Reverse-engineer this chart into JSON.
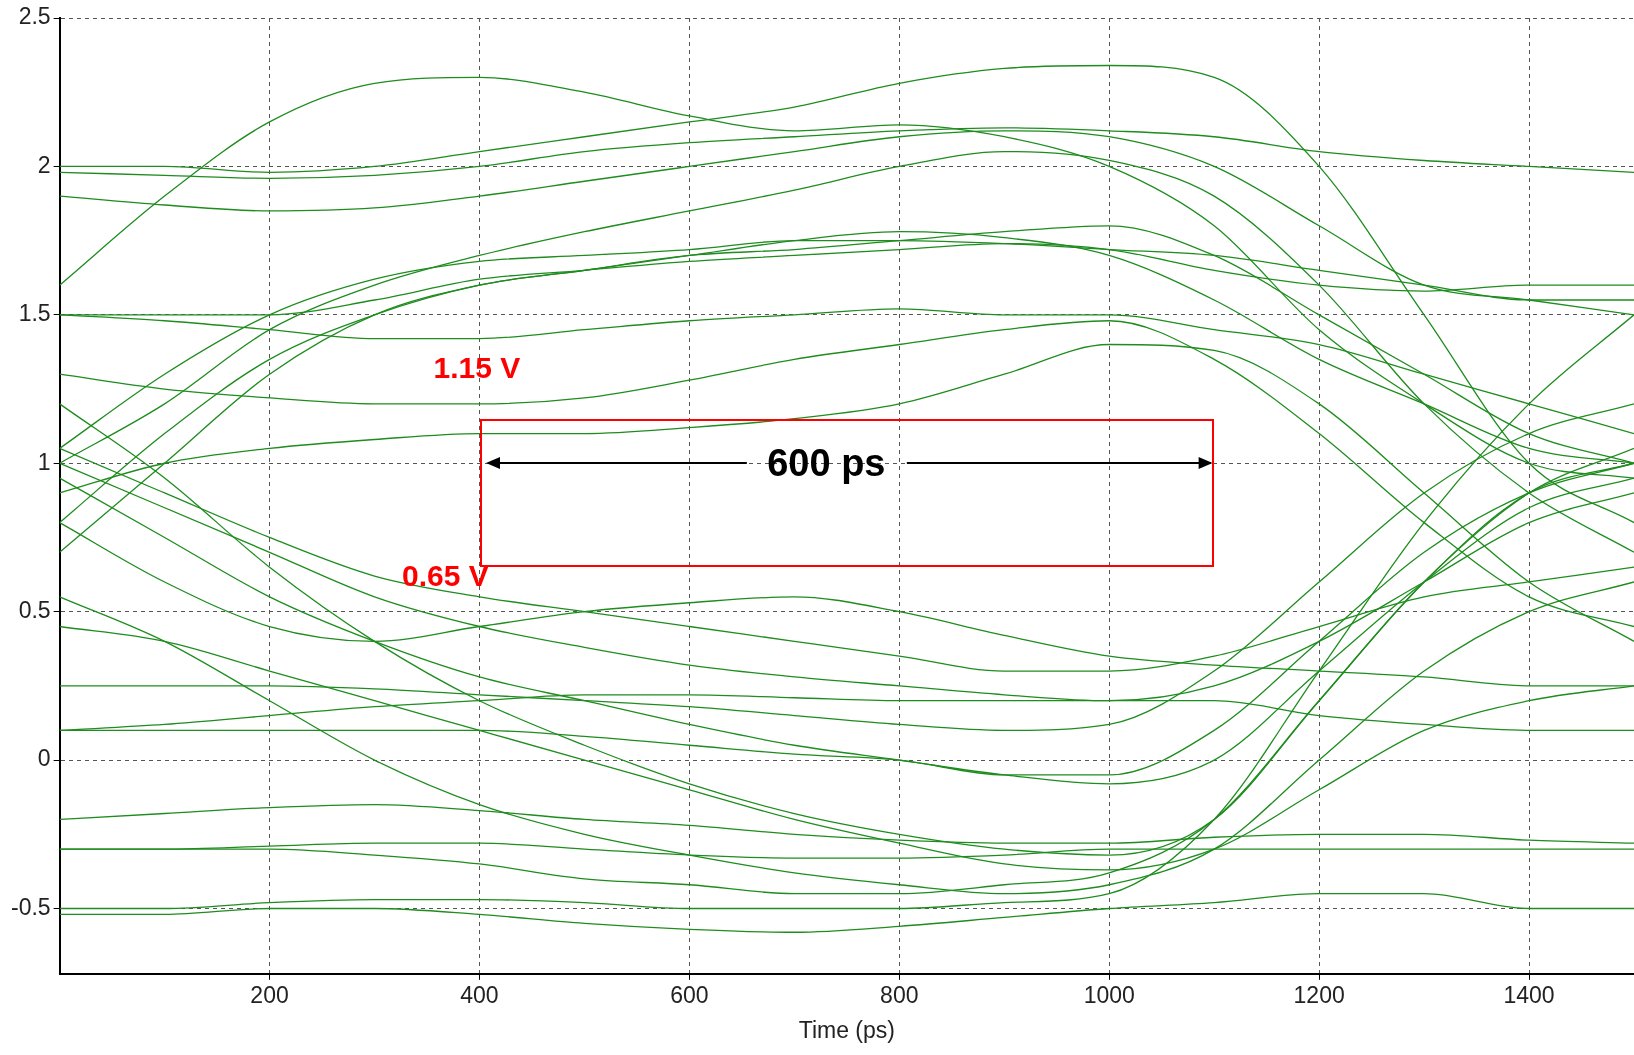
{
  "chart_data": {
    "type": "line",
    "xlabel": "Time (ps)",
    "x": [
      0,
      100,
      200,
      300,
      400,
      500,
      600,
      700,
      800,
      900,
      1000,
      1100,
      1200,
      1300,
      1400,
      1500
    ],
    "xlim": [
      0,
      1500
    ],
    "xticks": [
      200,
      400,
      600,
      800,
      1000,
      1200,
      1400
    ],
    "ylim": [
      -0.72,
      2.5
    ],
    "yticks": [
      -0.5,
      0,
      0.5,
      1,
      1.5,
      2,
      2.5
    ],
    "grid": true,
    "legend": false,
    "marker": "none",
    "line_style": "solid",
    "annotations": [
      "1.15 V",
      "0.65 V",
      "600 ps"
    ],
    "series": [
      {
        "color": "#1e8c1e",
        "values": [
          1.6,
          1.9,
          2.15,
          2.28,
          2.3,
          2.25,
          2.17,
          2.12,
          2.14,
          2.1,
          2.0,
          1.8,
          1.45,
          1.2,
          1.0,
          0.95
        ]
      },
      {
        "color": "#1e8c1e",
        "values": [
          2.0,
          2.0,
          1.98,
          2.0,
          2.05,
          2.1,
          2.15,
          2.2,
          2.28,
          2.33,
          2.34,
          2.3,
          2.0,
          1.5,
          1.0,
          0.8
        ]
      },
      {
        "color": "#1e8c1e",
        "values": [
          1.98,
          1.97,
          1.96,
          1.97,
          2.0,
          2.05,
          2.08,
          2.1,
          2.12,
          2.13,
          2.12,
          2.1,
          2.05,
          2.02,
          2.0,
          1.98
        ]
      },
      {
        "color": "#1e8c1e",
        "values": [
          1.9,
          1.87,
          1.85,
          1.86,
          1.9,
          1.95,
          2.0,
          2.05,
          2.1,
          2.12,
          2.1,
          2.0,
          1.8,
          1.6,
          1.55,
          1.5
        ]
      },
      {
        "color": "#1e8c1e",
        "values": [
          1.5,
          1.5,
          1.5,
          1.55,
          1.62,
          1.65,
          1.68,
          1.7,
          1.72,
          1.74,
          1.72,
          1.65,
          1.6,
          1.58,
          1.6,
          1.6
        ]
      },
      {
        "color": "#1e8c1e",
        "values": [
          1.0,
          1.2,
          1.45,
          1.6,
          1.7,
          1.78,
          1.85,
          1.92,
          2.0,
          2.05,
          2.02,
          1.9,
          1.6,
          1.2,
          0.9,
          0.7
        ]
      },
      {
        "color": "#1e8c1e",
        "values": [
          0.8,
          1.1,
          1.35,
          1.5,
          1.6,
          1.65,
          1.7,
          1.75,
          1.78,
          1.76,
          1.7,
          1.55,
          1.35,
          1.2,
          1.05,
          1.0
        ]
      },
      {
        "color": "#1e8c1e",
        "values": [
          1.3,
          1.25,
          1.22,
          1.2,
          1.2,
          1.22,
          1.28,
          1.35,
          1.4,
          1.45,
          1.48,
          1.35,
          1.1,
          0.8,
          0.55,
          0.45
        ]
      },
      {
        "color": "#1e8c1e",
        "values": [
          1.5,
          1.48,
          1.45,
          1.42,
          1.42,
          1.45,
          1.48,
          1.5,
          1.52,
          1.5,
          1.5,
          1.45,
          1.4,
          1.3,
          1.2,
          1.1
        ]
      },
      {
        "color": "#1e8c1e",
        "values": [
          0.9,
          1.0,
          1.05,
          1.08,
          1.1,
          1.1,
          1.12,
          1.15,
          1.2,
          1.3,
          1.4,
          1.38,
          1.2,
          0.9,
          0.6,
          0.4
        ]
      },
      {
        "color": "#1e8c1e",
        "values": [
          1.05,
          1.3,
          1.5,
          1.62,
          1.68,
          1.7,
          1.72,
          1.75,
          1.75,
          1.74,
          1.72,
          1.7,
          1.65,
          1.6,
          1.55,
          1.55
        ]
      },
      {
        "color": "#1e8c1e",
        "values": [
          0.7,
          1.0,
          1.3,
          1.5,
          1.6,
          1.65,
          1.7,
          1.72,
          1.75,
          1.78,
          1.8,
          1.7,
          1.5,
          1.3,
          1.1,
          1.0
        ]
      },
      {
        "color": "#1e8c1e",
        "values": [
          -0.3,
          -0.3,
          -0.3,
          -0.32,
          -0.35,
          -0.4,
          -0.42,
          -0.45,
          -0.45,
          -0.42,
          -0.38,
          -0.2,
          0.2,
          0.6,
          0.9,
          1.05
        ]
      },
      {
        "color": "#1e8c1e",
        "values": [
          0.1,
          0.1,
          0.1,
          0.1,
          0.1,
          0.08,
          0.05,
          0.02,
          0.0,
          -0.05,
          -0.05,
          0.1,
          0.4,
          0.7,
          0.9,
          1.0
        ]
      },
      {
        "color": "#1e8c1e",
        "values": [
          0.25,
          0.25,
          0.25,
          0.24,
          0.22,
          0.2,
          0.18,
          0.15,
          0.12,
          0.1,
          0.12,
          0.3,
          0.6,
          0.9,
          1.1,
          1.2
        ]
      },
      {
        "color": "#1e8c1e",
        "values": [
          -0.5,
          -0.5,
          -0.48,
          -0.47,
          -0.47,
          -0.48,
          -0.5,
          -0.5,
          -0.5,
          -0.48,
          -0.45,
          -0.2,
          0.3,
          0.8,
          1.2,
          1.5
        ]
      },
      {
        "color": "#1e8c1e",
        "values": [
          1.05,
          0.9,
          0.75,
          0.62,
          0.55,
          0.5,
          0.45,
          0.4,
          0.35,
          0.3,
          0.3,
          0.35,
          0.45,
          0.55,
          0.6,
          0.65
        ]
      },
      {
        "color": "#1e8c1e",
        "values": [
          1.0,
          0.85,
          0.7,
          0.55,
          0.45,
          0.38,
          0.32,
          0.28,
          0.25,
          0.22,
          0.2,
          0.25,
          0.4,
          0.6,
          0.8,
          0.9
        ]
      },
      {
        "color": "#1e8c1e",
        "values": [
          0.95,
          0.75,
          0.55,
          0.4,
          0.28,
          0.2,
          0.12,
          0.05,
          0.0,
          -0.05,
          -0.08,
          0.0,
          0.3,
          0.6,
          0.85,
          0.95
        ]
      },
      {
        "color": "#1e8c1e",
        "values": [
          1.2,
          0.95,
          0.65,
          0.4,
          0.2,
          0.05,
          -0.08,
          -0.18,
          -0.25,
          -0.3,
          -0.32,
          -0.2,
          0.2,
          0.6,
          0.9,
          1.0
        ]
      },
      {
        "color": "#1e8c1e",
        "values": [
          0.55,
          0.4,
          0.2,
          0.0,
          -0.15,
          -0.25,
          -0.32,
          -0.38,
          -0.42,
          -0.45,
          -0.42,
          -0.3,
          0.0,
          0.3,
          0.5,
          0.6
        ]
      },
      {
        "color": "#1e8c1e",
        "values": [
          0.45,
          0.4,
          0.3,
          0.2,
          0.1,
          0.0,
          -0.1,
          -0.2,
          -0.28,
          -0.35,
          -0.37,
          -0.3,
          -0.1,
          0.1,
          0.2,
          0.25
        ]
      },
      {
        "color": "#1e8c1e",
        "values": [
          -0.3,
          -0.3,
          -0.29,
          -0.28,
          -0.28,
          -0.3,
          -0.32,
          -0.33,
          -0.33,
          -0.32,
          -0.3,
          -0.3,
          -0.3,
          -0.3,
          -0.3,
          -0.3
        ]
      },
      {
        "color": "#1e8c1e",
        "values": [
          -0.2,
          -0.18,
          -0.16,
          -0.15,
          -0.17,
          -0.2,
          -0.22,
          -0.25,
          -0.27,
          -0.28,
          -0.28,
          -0.26,
          -0.25,
          -0.25,
          -0.27,
          -0.28
        ]
      },
      {
        "color": "#1e8c1e",
        "values": [
          0.1,
          0.12,
          0.15,
          0.18,
          0.2,
          0.22,
          0.22,
          0.21,
          0.2,
          0.2,
          0.2,
          0.2,
          0.15,
          0.12,
          0.1,
          0.1
        ]
      },
      {
        "color": "#1e8c1e",
        "values": [
          0.8,
          0.6,
          0.45,
          0.4,
          0.45,
          0.5,
          0.53,
          0.55,
          0.5,
          0.42,
          0.35,
          0.32,
          0.3,
          0.28,
          0.25,
          0.25
        ]
      },
      {
        "color": "#1e8c1e",
        "values": [
          -0.52,
          -0.52,
          -0.5,
          -0.5,
          -0.52,
          -0.55,
          -0.57,
          -0.58,
          -0.56,
          -0.53,
          -0.5,
          -0.48,
          -0.45,
          -0.45,
          -0.5,
          -0.5
        ]
      }
    ]
  }
}
